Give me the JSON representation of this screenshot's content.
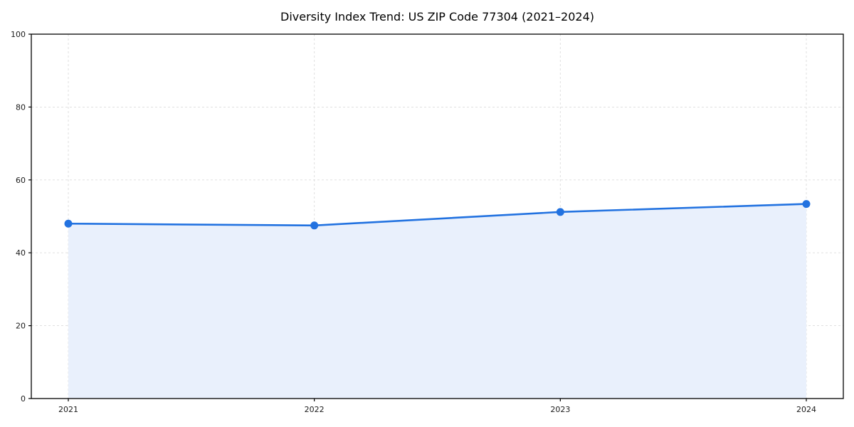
{
  "chart_data": {
    "type": "area",
    "title": "Diversity Index Trend: US ZIP Code 77304 (2021–2024)",
    "x": [
      "2021",
      "2022",
      "2023",
      "2024"
    ],
    "values": [
      48.0,
      47.5,
      51.2,
      53.4
    ],
    "xlabel": "",
    "ylabel": "",
    "ylim": [
      0,
      100
    ],
    "yticks": [
      0,
      20,
      40,
      60,
      80,
      100
    ],
    "grid": "dashed, horizontal and vertical at ticks",
    "legend": "none",
    "colors": {
      "line": "#2272e0",
      "marker": "#2272e0",
      "fill": "#e9f0fc",
      "gridline": "#dcdcdc",
      "spine": "#000000",
      "tick_text": "#1a1a1a",
      "background": "#ffffff"
    }
  }
}
